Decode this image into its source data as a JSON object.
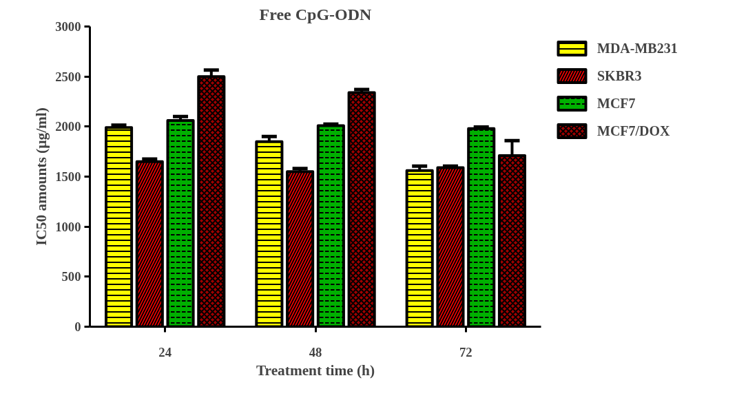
{
  "chart_data": {
    "type": "bar",
    "title": "Free CpG-ODN",
    "xlabel": "Treatment time (h)",
    "ylabel": "IC50 amounts (µg/ml)",
    "categories": [
      "24",
      "48",
      "72"
    ],
    "series": [
      {
        "name": "MDA-MB231",
        "color": "#ffff00",
        "values": [
          1990,
          1850,
          1560
        ],
        "errors": [
          25,
          50,
          45
        ]
      },
      {
        "name": "SKBR3",
        "color": "#ff0000",
        "values": [
          1650,
          1550,
          1590
        ],
        "errors": [
          25,
          30,
          15
        ]
      },
      {
        "name": "MCF7",
        "color": "#00b000",
        "values": [
          2060,
          2010,
          1980
        ],
        "errors": [
          40,
          15,
          15
        ]
      },
      {
        "name": "MCF7/DOX",
        "color": "#a00000",
        "values": [
          2500,
          2340,
          1710
        ],
        "errors": [
          65,
          30,
          150
        ]
      }
    ],
    "ylim": [
      0,
      3000
    ],
    "yticks": [
      0,
      500,
      1000,
      1500,
      2000,
      2500,
      3000
    ],
    "grid": false,
    "legend": "right"
  }
}
